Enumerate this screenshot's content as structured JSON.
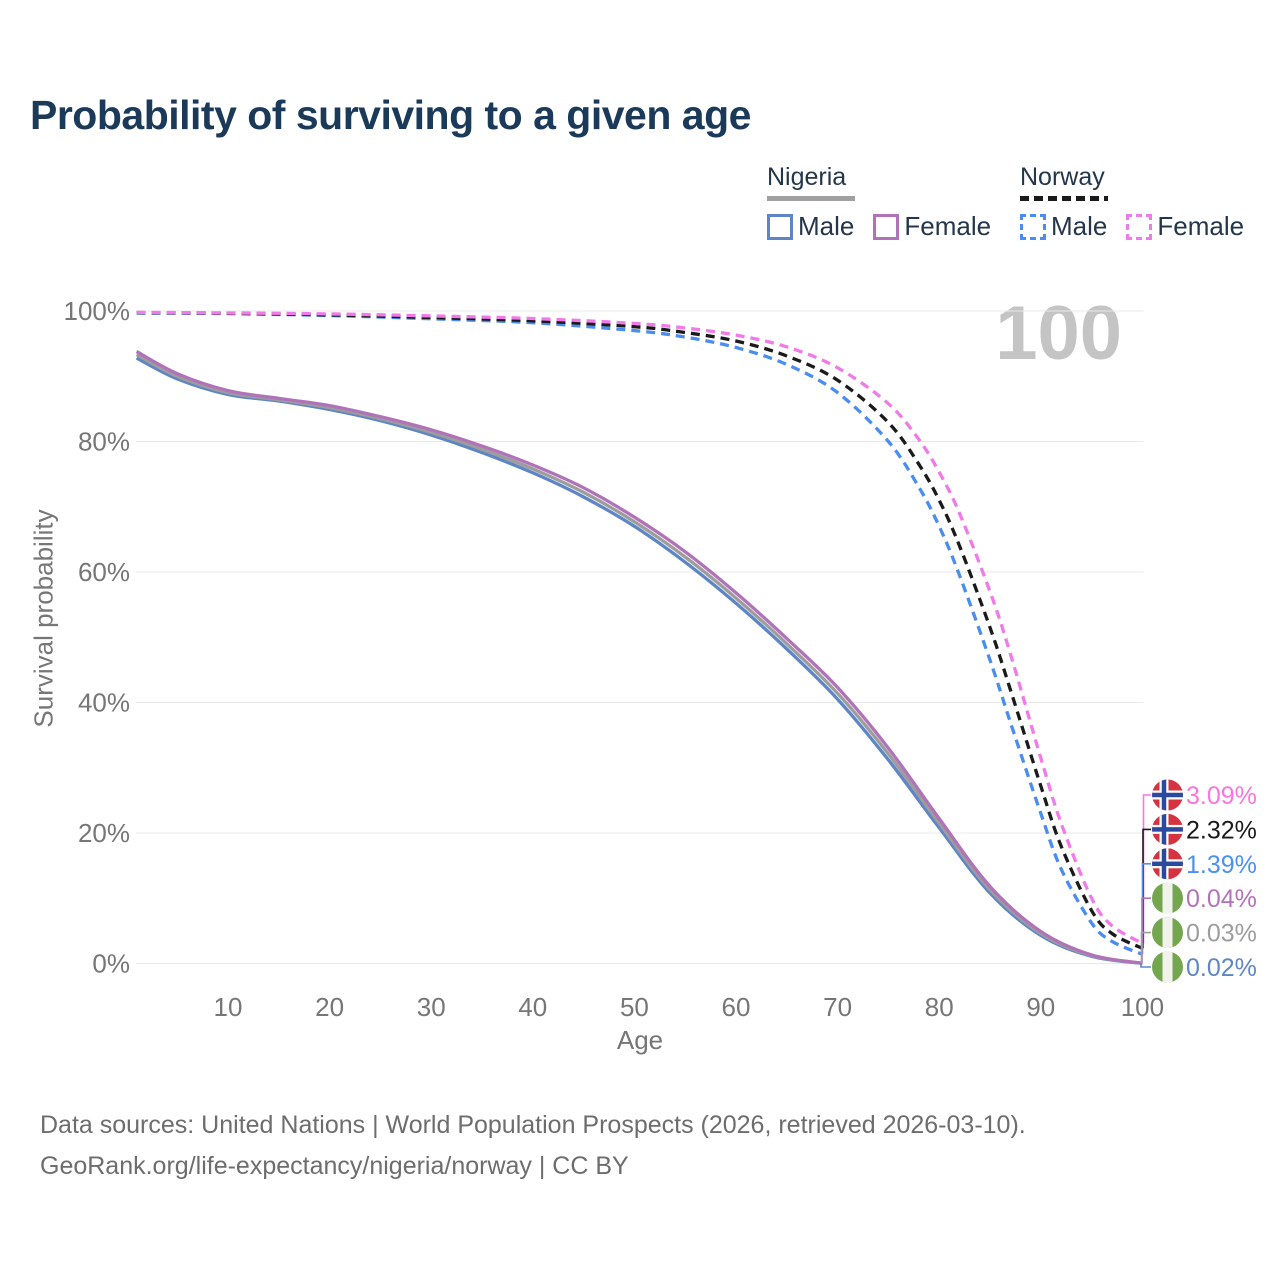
{
  "title": "Probability of surviving to a given age",
  "watermark": "100",
  "colors": {
    "nigeria_male": "#5e86c6",
    "nigeria_both": "#9d9d9d",
    "nigeria_female": "#b173b8",
    "norway_male": "#4a8df0",
    "norway_both": "#1a1a1a",
    "norway_female": "#f07ae8",
    "grid": "#e8e8e8",
    "axis_text": "#767676",
    "title_text": "#1b3a5a",
    "legend_text": "#24364b",
    "watermark_text": "#c4c4c4",
    "nigeria_underline": "#a0a0a0",
    "norway_underline": "#1a1a1a",
    "flag_norway_red": "#d5333f",
    "flag_norway_blue": "#2b4a9e",
    "flag_nigeria_green": "#74a650",
    "flag_nigeria_white": "#f2f2ec"
  },
  "legend": {
    "groups": [
      {
        "country": "Nigeria",
        "style": "solid",
        "items": [
          {
            "label": "Male",
            "color": "#5e86c6"
          },
          {
            "label": "Female",
            "color": "#b173b8"
          }
        ]
      },
      {
        "country": "Norway",
        "style": "dashed",
        "items": [
          {
            "label": "Male",
            "color": "#4a8df0"
          },
          {
            "label": "Female",
            "color": "#f07ae8"
          }
        ]
      }
    ]
  },
  "chart_data": {
    "type": "line",
    "title": "Probability of surviving to a given age",
    "xlabel": "Age",
    "ylabel": "Survival probability",
    "xlim": [
      0,
      100
    ],
    "ylim": [
      0,
      100
    ],
    "grid": true,
    "x_ticks": [
      10,
      20,
      30,
      40,
      50,
      60,
      70,
      80,
      90,
      100
    ],
    "y_ticks": [
      0,
      20,
      40,
      60,
      80,
      100
    ],
    "y_tick_labels": [
      "0%",
      "20%",
      "40%",
      "60%",
      "80%",
      "100%"
    ],
    "series": [
      {
        "id": "nigeria_male",
        "country": "Nigeria",
        "sex": "Male",
        "dash": false,
        "color": "#5e86c6",
        "points": [
          [
            1,
            92.8
          ],
          [
            5,
            89.6
          ],
          [
            10,
            87.2
          ],
          [
            15,
            86.2
          ],
          [
            20,
            84.9
          ],
          [
            25,
            83.2
          ],
          [
            30,
            81.0
          ],
          [
            35,
            78.3
          ],
          [
            40,
            75.2
          ],
          [
            45,
            71.5
          ],
          [
            50,
            67.0
          ],
          [
            55,
            61.5
          ],
          [
            60,
            55.2
          ],
          [
            65,
            48.2
          ],
          [
            70,
            40.5
          ],
          [
            75,
            31.2
          ],
          [
            80,
            20.8
          ],
          [
            85,
            10.8
          ],
          [
            90,
            4.3
          ],
          [
            95,
            1.1
          ],
          [
            100,
            0.02
          ]
        ]
      },
      {
        "id": "nigeria_both",
        "country": "Nigeria",
        "sex": "Both",
        "dash": false,
        "color": "#9d9d9d",
        "points": [
          [
            1,
            93.3
          ],
          [
            5,
            90.0
          ],
          [
            10,
            87.5
          ],
          [
            15,
            86.4
          ],
          [
            20,
            85.2
          ],
          [
            25,
            83.5
          ],
          [
            30,
            81.4
          ],
          [
            35,
            78.8
          ],
          [
            40,
            75.8
          ],
          [
            45,
            72.2
          ],
          [
            50,
            67.7
          ],
          [
            55,
            62.3
          ],
          [
            60,
            56.0
          ],
          [
            65,
            49.0
          ],
          [
            70,
            41.4
          ],
          [
            75,
            32.1
          ],
          [
            80,
            21.5
          ],
          [
            85,
            11.3
          ],
          [
            90,
            4.6
          ],
          [
            95,
            1.2
          ],
          [
            100,
            0.03
          ]
        ]
      },
      {
        "id": "nigeria_female",
        "country": "Nigeria",
        "sex": "Female",
        "dash": false,
        "color": "#b173b8",
        "points": [
          [
            1,
            93.8
          ],
          [
            5,
            90.4
          ],
          [
            10,
            87.8
          ],
          [
            15,
            86.6
          ],
          [
            20,
            85.5
          ],
          [
            25,
            83.8
          ],
          [
            30,
            81.8
          ],
          [
            35,
            79.3
          ],
          [
            40,
            76.4
          ],
          [
            45,
            72.9
          ],
          [
            50,
            68.4
          ],
          [
            55,
            63.1
          ],
          [
            60,
            56.8
          ],
          [
            65,
            49.8
          ],
          [
            70,
            42.3
          ],
          [
            75,
            33.0
          ],
          [
            80,
            22.2
          ],
          [
            85,
            11.8
          ],
          [
            90,
            4.9
          ],
          [
            95,
            1.3
          ],
          [
            100,
            0.04
          ]
        ]
      },
      {
        "id": "norway_male",
        "country": "Norway",
        "sex": "Male",
        "dash": true,
        "color": "#4a8df0",
        "points": [
          [
            1,
            99.7
          ],
          [
            10,
            99.6
          ],
          [
            20,
            99.3
          ],
          [
            30,
            98.8
          ],
          [
            40,
            98.2
          ],
          [
            50,
            97.0
          ],
          [
            55,
            96.0
          ],
          [
            60,
            94.4
          ],
          [
            65,
            91.8
          ],
          [
            70,
            87.5
          ],
          [
            75,
            80.0
          ],
          [
            78,
            73.0
          ],
          [
            80,
            67.0
          ],
          [
            82,
            59.5
          ],
          [
            85,
            46.5
          ],
          [
            87,
            37.0
          ],
          [
            90,
            23.0
          ],
          [
            92,
            14.5
          ],
          [
            95,
            6.2
          ],
          [
            97,
            3.4
          ],
          [
            100,
            1.39
          ]
        ]
      },
      {
        "id": "norway_both",
        "country": "Norway",
        "sex": "Both",
        "dash": true,
        "color": "#1a1a1a",
        "points": [
          [
            1,
            99.75
          ],
          [
            10,
            99.65
          ],
          [
            20,
            99.4
          ],
          [
            30,
            99.0
          ],
          [
            40,
            98.5
          ],
          [
            50,
            97.6
          ],
          [
            55,
            96.7
          ],
          [
            60,
            95.4
          ],
          [
            65,
            93.1
          ],
          [
            70,
            89.4
          ],
          [
            75,
            82.9
          ],
          [
            78,
            76.5
          ],
          [
            80,
            71.0
          ],
          [
            82,
            64.0
          ],
          [
            85,
            51.5
          ],
          [
            87,
            42.0
          ],
          [
            90,
            27.2
          ],
          [
            92,
            18.0
          ],
          [
            95,
            8.1
          ],
          [
            97,
            4.6
          ],
          [
            100,
            2.32
          ]
        ]
      },
      {
        "id": "norway_female",
        "country": "Norway",
        "sex": "Female",
        "dash": true,
        "color": "#f07ae8",
        "points": [
          [
            1,
            99.8
          ],
          [
            10,
            99.7
          ],
          [
            20,
            99.55
          ],
          [
            30,
            99.25
          ],
          [
            40,
            98.85
          ],
          [
            50,
            98.1
          ],
          [
            55,
            97.4
          ],
          [
            60,
            96.3
          ],
          [
            65,
            94.5
          ],
          [
            70,
            91.3
          ],
          [
            75,
            85.8
          ],
          [
            78,
            80.3
          ],
          [
            80,
            75.3
          ],
          [
            82,
            69.0
          ],
          [
            85,
            57.0
          ],
          [
            87,
            47.5
          ],
          [
            90,
            31.5
          ],
          [
            92,
            21.5
          ],
          [
            95,
            10.0
          ],
          [
            97,
            5.8
          ],
          [
            100,
            3.09
          ]
        ]
      }
    ],
    "end_labels": [
      {
        "flag": "norway",
        "value": "3.09%",
        "pct": 3.09,
        "color": "#fb74df"
      },
      {
        "flag": "norway",
        "value": "2.32%",
        "pct": 2.32,
        "color": "#1a1a1a"
      },
      {
        "flag": "norway",
        "value": "1.39%",
        "pct": 1.39,
        "color": "#4a90ee"
      },
      {
        "flag": "nigeria",
        "value": "0.04%",
        "pct": 0.04,
        "color": "#b173b8"
      },
      {
        "flag": "nigeria",
        "value": "0.03%",
        "pct": 0.03,
        "color": "#9d9d9d"
      },
      {
        "flag": "nigeria",
        "value": "0.02%",
        "pct": 0.02,
        "color": "#5e86c6"
      }
    ]
  },
  "footer": {
    "line1": "Data sources: United Nations | World Population Prospects (2026, retrieved 2026-03-10).",
    "line2": "GeoRank.org/life-expectancy/nigeria/norway | CC BY"
  }
}
